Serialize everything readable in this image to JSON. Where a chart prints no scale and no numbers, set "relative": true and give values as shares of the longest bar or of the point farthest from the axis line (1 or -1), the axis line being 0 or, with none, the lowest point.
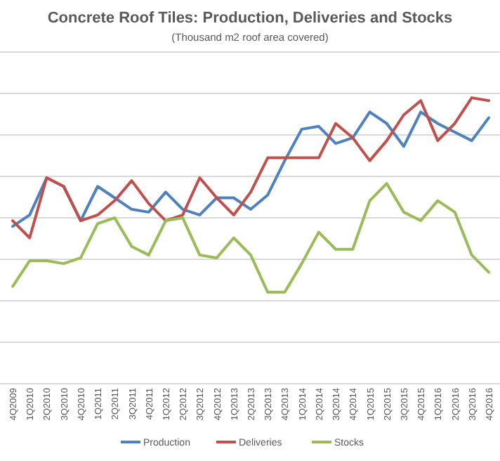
{
  "chart_data": {
    "type": "line",
    "title": "Concrete Roof Tiles: Production, Deliveries and Stocks",
    "subtitle": "(Thousand m2 roof area covered)",
    "relative": true,
    "grid": "y",
    "legend": "bottom",
    "marker": "none",
    "line_style": "solid",
    "categories": [
      "4Q2009",
      "1Q2010",
      "2Q2010",
      "3Q2010",
      "4Q2010",
      "1Q2011",
      "2Q2011",
      "3Q2011",
      "4Q2011",
      "1Q2012",
      "2Q2012",
      "3Q2012",
      "4Q2012",
      "1Q2013",
      "2Q2013",
      "3Q2013",
      "4Q2013",
      "1Q2014",
      "2Q2014",
      "3Q2014",
      "4Q2014",
      "1Q2015",
      "2Q2015",
      "3Q2015",
      "4Q2015",
      "1Q2016",
      "2Q2016",
      "3Q2016",
      "4Q2016"
    ],
    "series": [
      {
        "name": "Production",
        "color": "#4f81bd",
        "values": [
          0.55,
          0.59,
          0.72,
          0.69,
          0.57,
          0.69,
          0.65,
          0.61,
          0.6,
          0.67,
          0.61,
          0.59,
          0.65,
          0.65,
          0.61,
          0.66,
          0.78,
          0.89,
          0.9,
          0.84,
          0.86,
          0.95,
          0.91,
          0.83,
          0.95,
          0.91,
          0.88,
          0.85,
          0.93
        ]
      },
      {
        "name": "Deliveries",
        "color": "#c0504d",
        "values": [
          0.57,
          0.51,
          0.72,
          0.69,
          0.57,
          0.59,
          0.64,
          0.71,
          0.63,
          0.57,
          0.59,
          0.72,
          0.65,
          0.59,
          0.67,
          0.79,
          0.79,
          0.79,
          0.79,
          0.91,
          0.86,
          0.78,
          0.85,
          0.94,
          0.99,
          0.85,
          0.91,
          1,
          0.99
        ]
      },
      {
        "name": "Stocks",
        "color": "#9bbb59",
        "values": [
          0.34,
          0.43,
          0.43,
          0.42,
          0.44,
          0.56,
          0.58,
          0.48,
          0.45,
          0.57,
          0.58,
          0.45,
          0.44,
          0.51,
          0.45,
          0.32,
          0.32,
          0.42,
          0.53,
          0.47,
          0.47,
          0.64,
          0.7,
          0.6,
          0.57,
          0.64,
          0.6,
          0.45,
          0.39
        ]
      }
    ]
  }
}
